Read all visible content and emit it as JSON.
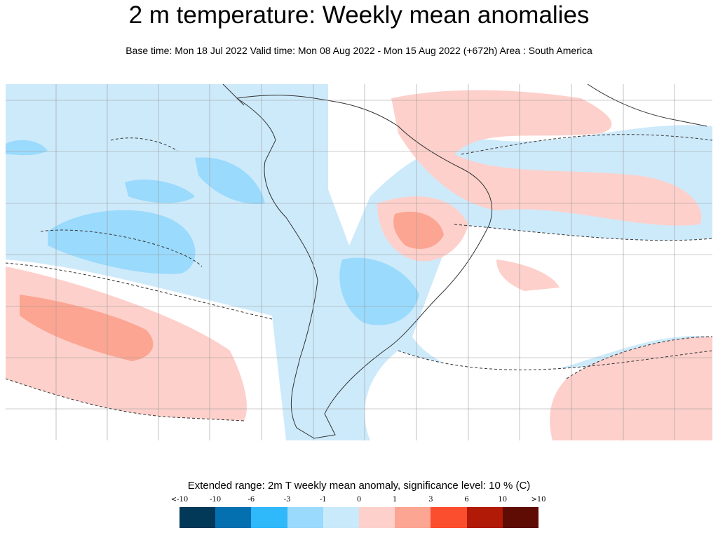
{
  "title": "2 m temperature: Weekly mean anomalies",
  "subtitle": "Base time: Mon 18 Jul 2022 Valid time: Mon 08 Aug 2022 - Mon 15 Aug 2022 (+672h) Area : South America",
  "map": {
    "area": "South America",
    "background_color": "#cdeafb",
    "land_outline_color": "#333333",
    "gridlines": true
  },
  "legend": {
    "title": "Extended range: 2m T weekly mean anomaly, significance level: 10 % (C)",
    "ticks": [
      "<-10",
      "-10",
      "-6",
      "-3",
      "-1",
      "0",
      "1",
      "3",
      "6",
      "10",
      ">10"
    ],
    "colors": [
      "#023858",
      "#0570b0",
      "#2fb8fa",
      "#9adafc",
      "#c9eafb",
      "#fdd0cb",
      "#fca592",
      "#fb4e2f",
      "#b01a06",
      "#5e0c04"
    ]
  }
}
